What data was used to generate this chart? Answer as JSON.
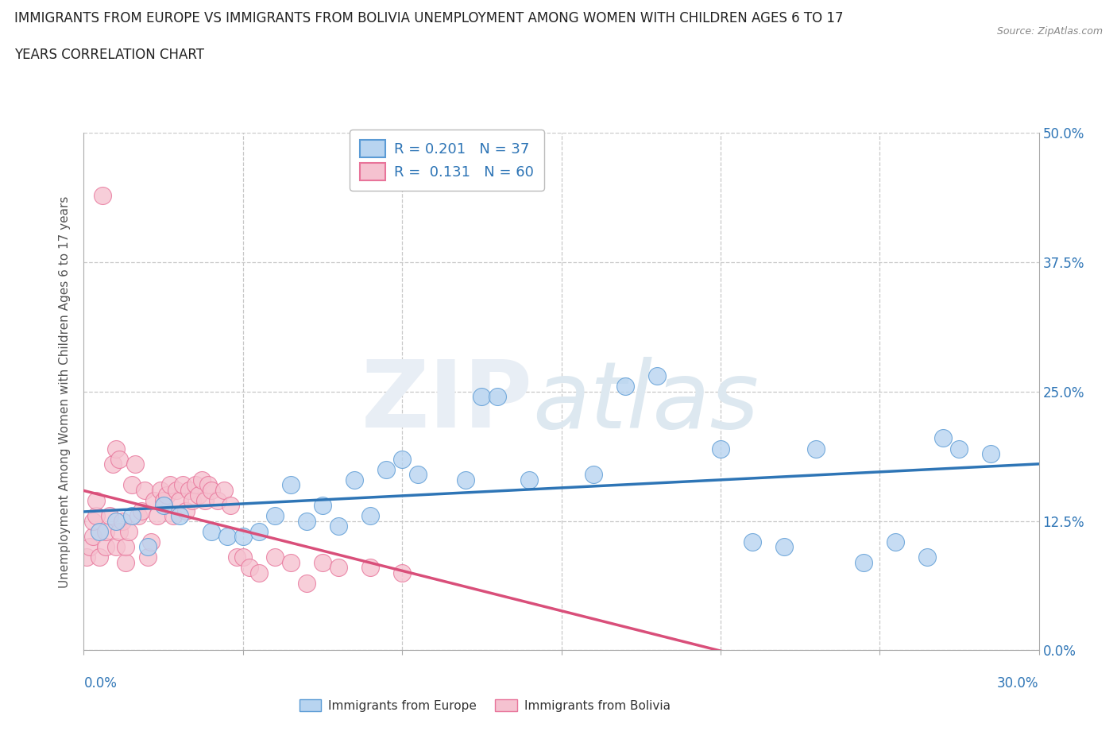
{
  "title_line1": "IMMIGRANTS FROM EUROPE VS IMMIGRANTS FROM BOLIVIA UNEMPLOYMENT AMONG WOMEN WITH CHILDREN AGES 6 TO 17",
  "title_line2": "YEARS CORRELATION CHART",
  "source": "Source: ZipAtlas.com",
  "ylabel_label": "Unemployment Among Women with Children Ages 6 to 17 years",
  "legend_europe_R": "0.201",
  "legend_europe_N": "37",
  "legend_bolivia_R": "0.131",
  "legend_bolivia_N": "60",
  "europe_color": "#b8d4f0",
  "europe_edge_color": "#5b9bd5",
  "europe_line_color": "#2e75b6",
  "bolivia_color": "#f5c2d0",
  "bolivia_edge_color": "#e8749a",
  "bolivia_line_color": "#d94f7a",
  "background_color": "#ffffff",
  "grid_color": "#c8c8c8",
  "xlim": [
    0.0,
    0.3
  ],
  "ylim": [
    0.0,
    0.5
  ],
  "yticks": [
    0.0,
    0.125,
    0.25,
    0.375,
    0.5
  ],
  "ytick_labels": [
    "0.0%",
    "12.5%",
    "25.0%",
    "37.5%",
    "50.0%"
  ],
  "xtick_left_label": "0.0%",
  "xtick_right_label": "30.0%",
  "europe_x": [
    0.005,
    0.01,
    0.015,
    0.02,
    0.025,
    0.03,
    0.04,
    0.045,
    0.05,
    0.055,
    0.06,
    0.065,
    0.07,
    0.075,
    0.08,
    0.085,
    0.09,
    0.095,
    0.1,
    0.105,
    0.12,
    0.125,
    0.13,
    0.14,
    0.16,
    0.17,
    0.18,
    0.2,
    0.21,
    0.22,
    0.23,
    0.245,
    0.255,
    0.265,
    0.27,
    0.275,
    0.285
  ],
  "europe_y": [
    0.115,
    0.125,
    0.13,
    0.1,
    0.14,
    0.13,
    0.115,
    0.11,
    0.11,
    0.115,
    0.13,
    0.16,
    0.125,
    0.14,
    0.12,
    0.165,
    0.13,
    0.175,
    0.185,
    0.17,
    0.165,
    0.245,
    0.245,
    0.165,
    0.17,
    0.255,
    0.265,
    0.195,
    0.105,
    0.1,
    0.195,
    0.085,
    0.105,
    0.09,
    0.205,
    0.195,
    0.19
  ],
  "bolivia_x": [
    0.001,
    0.002,
    0.003,
    0.003,
    0.004,
    0.004,
    0.005,
    0.006,
    0.007,
    0.007,
    0.008,
    0.009,
    0.01,
    0.01,
    0.011,
    0.011,
    0.012,
    0.013,
    0.013,
    0.014,
    0.015,
    0.016,
    0.017,
    0.018,
    0.019,
    0.02,
    0.021,
    0.022,
    0.023,
    0.024,
    0.025,
    0.026,
    0.027,
    0.028,
    0.029,
    0.03,
    0.031,
    0.032,
    0.033,
    0.034,
    0.035,
    0.036,
    0.037,
    0.038,
    0.039,
    0.04,
    0.042,
    0.044,
    0.046,
    0.048,
    0.05,
    0.052,
    0.055,
    0.06,
    0.065,
    0.07,
    0.075,
    0.08,
    0.09,
    0.1
  ],
  "bolivia_y": [
    0.09,
    0.1,
    0.11,
    0.125,
    0.13,
    0.145,
    0.09,
    0.44,
    0.1,
    0.115,
    0.13,
    0.18,
    0.195,
    0.1,
    0.115,
    0.185,
    0.125,
    0.085,
    0.1,
    0.115,
    0.16,
    0.18,
    0.13,
    0.135,
    0.155,
    0.09,
    0.105,
    0.145,
    0.13,
    0.155,
    0.145,
    0.15,
    0.16,
    0.13,
    0.155,
    0.145,
    0.16,
    0.135,
    0.155,
    0.145,
    0.16,
    0.15,
    0.165,
    0.145,
    0.16,
    0.155,
    0.145,
    0.155,
    0.14,
    0.09,
    0.09,
    0.08,
    0.075,
    0.09,
    0.085,
    0.065,
    0.085,
    0.08,
    0.08,
    0.075
  ]
}
